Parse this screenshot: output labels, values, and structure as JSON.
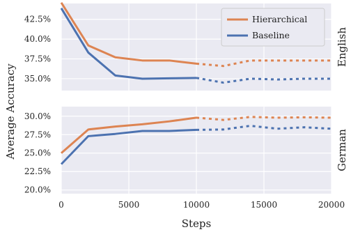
{
  "chart_data": [
    {
      "type": "line",
      "panel_label": "English",
      "x": [
        0,
        2000,
        4000,
        6000,
        8000,
        10000,
        12000,
        14000,
        16000,
        18000,
        20000
      ],
      "solid_until": 10000,
      "ylim": [
        33.5,
        44.5
      ],
      "yticks": [
        35.0,
        37.5,
        40.0,
        42.5
      ],
      "ytick_labels": [
        "35.0%",
        "37.5%",
        "40.0%",
        "42.5%"
      ],
      "series": [
        {
          "name": "Hierarchical",
          "color": "#dd8452",
          "values": [
            44.6,
            39.2,
            37.7,
            37.3,
            37.3,
            36.9,
            36.6,
            37.3,
            37.3,
            37.3,
            37.3
          ]
        },
        {
          "name": "Baseline",
          "color": "#4c72b0",
          "values": [
            43.9,
            38.3,
            35.4,
            35.0,
            35.05,
            35.1,
            34.5,
            35.0,
            34.9,
            35.0,
            35.0
          ]
        }
      ],
      "legend": "top-right",
      "grid": true
    },
    {
      "type": "line",
      "panel_label": "German",
      "x": [
        0,
        2000,
        4000,
        6000,
        8000,
        10000,
        12000,
        14000,
        16000,
        18000,
        20000
      ],
      "solid_until": 10000,
      "ylim": [
        19.5,
        31.3
      ],
      "yticks": [
        20.0,
        22.5,
        25.0,
        27.5,
        30.0
      ],
      "ytick_labels": [
        "20.0%",
        "22.5%",
        "25.0%",
        "27.5%",
        "30.0%"
      ],
      "series": [
        {
          "name": "Hierarchical",
          "color": "#dd8452",
          "values": [
            25.0,
            28.2,
            28.6,
            28.9,
            29.3,
            29.8,
            29.5,
            29.9,
            29.8,
            29.85,
            29.8
          ]
        },
        {
          "name": "Baseline",
          "color": "#4c72b0",
          "values": [
            23.5,
            27.3,
            27.6,
            28.0,
            28.0,
            28.15,
            28.2,
            28.7,
            28.3,
            28.5,
            28.3
          ]
        }
      ],
      "grid": true
    }
  ],
  "xticks": [
    0,
    5000,
    10000,
    15000,
    20000
  ],
  "xtick_labels": [
    "0",
    "5000",
    "10000",
    "15000",
    "20000"
  ],
  "xlim": [
    0,
    20000
  ],
  "xlabel": "Steps",
  "ylabel": "Average Accuracy",
  "legend_labels": [
    "Hierarchical",
    "Baseline"
  ],
  "colors": {
    "panel_bg": "#eaeaf2",
    "grid": "#ffffff"
  }
}
